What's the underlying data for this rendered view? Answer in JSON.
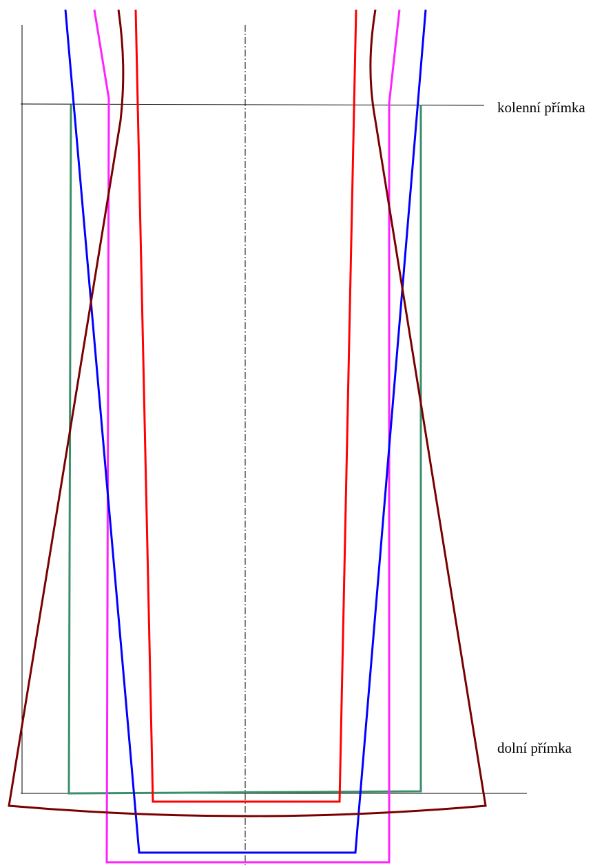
{
  "labels": {
    "knee_line": "kolenní přímka",
    "hem_line": "dolní přímka"
  },
  "colors": {
    "frame": "#000000",
    "center": "#000000",
    "green": "#3a8f6a",
    "red": "#ff0000",
    "magenta": "#ff22ff",
    "blue": "#0000ff",
    "brown": "#7a0000"
  },
  "outlines": [
    {
      "name": "green-outline",
      "color": "#3a8f6a"
    },
    {
      "name": "red-outline",
      "color": "#ff0000"
    },
    {
      "name": "magenta-outline",
      "color": "#ff22ff"
    },
    {
      "name": "blue-outline",
      "color": "#0000ff"
    },
    {
      "name": "brown-outline",
      "color": "#7a0000"
    }
  ]
}
